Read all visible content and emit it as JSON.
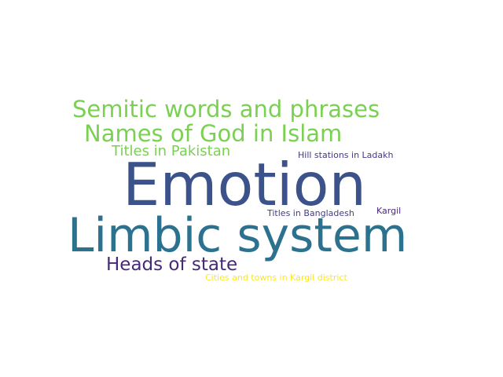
{
  "words": [
    {
      "text": "Emotion",
      "color": "#3b528b"
    },
    {
      "text": "Limbic system",
      "color": "#2c728e"
    },
    {
      "text": "Semitic words and phrases",
      "color": "#7ad151"
    },
    {
      "text": "Names of God in Islam",
      "color": "#7ad151"
    },
    {
      "text": "Titles in Pakistan",
      "color": "#7ad151"
    },
    {
      "text": "Heads of state",
      "color": "#482878"
    },
    {
      "text": "Hill stations in Ladakh",
      "color": "#443983"
    },
    {
      "text": "Titles in Bangladesh",
      "color": "#433e85"
    },
    {
      "text": "Kargil",
      "color": "#482878"
    },
    {
      "text": "Cities and towns in Kargil district",
      "color": "#fde725"
    }
  ]
}
